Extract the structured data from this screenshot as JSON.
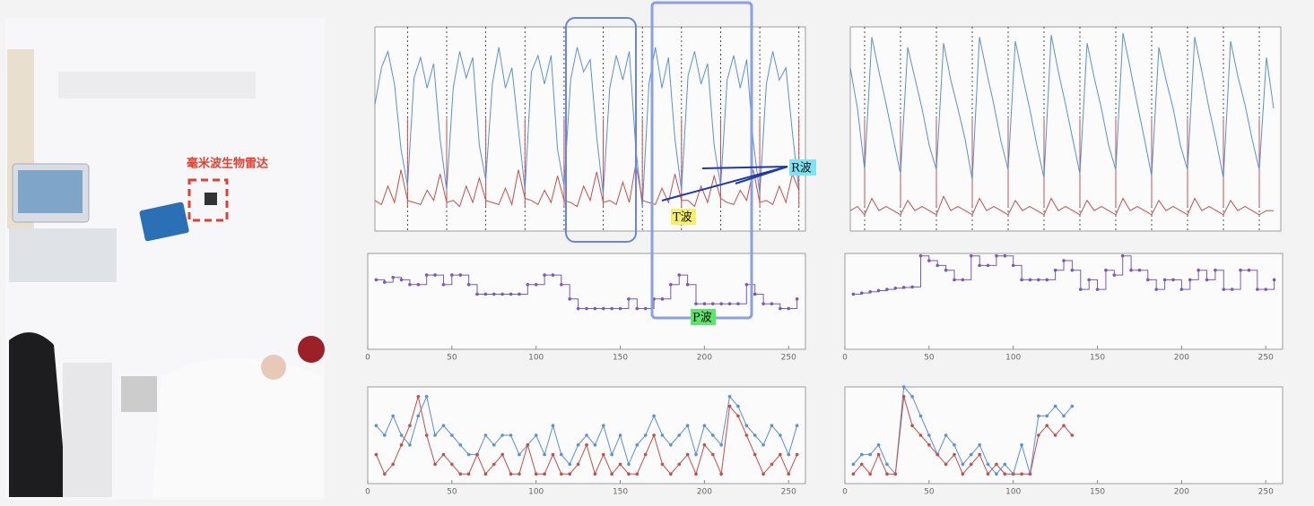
{
  "photo": {
    "label": "毫米波生物雷达"
  },
  "annotations": {
    "r_wave": "R波",
    "t_wave": "T波",
    "p_wave": "P波"
  },
  "chart_data": [
    {
      "type": "wave",
      "xlim": [
        0,
        66
      ],
      "ylim": [
        0,
        1
      ],
      "r_peaks": [
        5,
        11,
        17,
        23,
        29,
        35,
        41,
        47,
        53,
        59,
        65
      ],
      "series": [
        {
          "color": "#5b8fd6",
          "values": [
            0.62,
            0.8,
            0.88,
            0.72,
            0.4,
            0.22,
            0.75,
            0.85,
            0.7,
            0.82,
            0.45,
            0.2,
            0.7,
            0.88,
            0.75,
            0.85,
            0.42,
            0.25,
            0.72,
            0.9,
            0.7,
            0.8,
            0.5,
            0.2,
            0.78,
            0.86,
            0.72,
            0.86,
            0.4,
            0.22,
            0.74,
            0.9,
            0.78,
            0.84,
            0.46,
            0.18,
            0.7,
            0.86,
            0.74,
            0.88,
            0.4,
            0.12,
            0.72,
            0.9,
            0.7,
            0.85,
            0.45,
            0.2,
            0.76,
            0.88,
            0.72,
            0.82,
            0.42,
            0.22,
            0.74,
            0.86,
            0.7,
            0.84,
            0.44,
            0.18,
            0.72,
            0.88,
            0.74,
            0.8,
            0.48,
            0.2
          ]
        },
        {
          "color": "#c0504d",
          "values": [
            0.15,
            0.13,
            0.22,
            0.14,
            0.3,
            0.15,
            0.14,
            0.13,
            0.2,
            0.15,
            0.28,
            0.14,
            0.15,
            0.12,
            0.22,
            0.14,
            0.26,
            0.15,
            0.14,
            0.13,
            0.21,
            0.13,
            0.3,
            0.16,
            0.15,
            0.13,
            0.2,
            0.14,
            0.27,
            0.15,
            0.14,
            0.12,
            0.22,
            0.15,
            0.29,
            0.14,
            0.15,
            0.13,
            0.24,
            0.14,
            0.33,
            0.15,
            0.14,
            0.13,
            0.21,
            0.14,
            0.28,
            0.15,
            0.15,
            0.12,
            0.22,
            0.14,
            0.27,
            0.16,
            0.14,
            0.13,
            0.2,
            0.15,
            0.3,
            0.14,
            0.15,
            0.13,
            0.22,
            0.14,
            0.28,
            0.2
          ]
        }
      ]
    },
    {
      "type": "wave",
      "xlim": [
        0,
        60
      ],
      "ylim": [
        0,
        1
      ],
      "r_peaks": [
        2,
        7,
        12,
        17,
        22,
        27,
        32,
        37,
        42,
        47,
        52,
        57
      ],
      "series": [
        {
          "color": "#5b8fd6",
          "values": [
            0.8,
            0.6,
            0.3,
            0.95,
            0.78,
            0.62,
            0.45,
            0.28,
            0.9,
            0.75,
            0.6,
            0.42,
            0.3,
            0.92,
            0.74,
            0.6,
            0.45,
            0.25,
            0.95,
            0.78,
            0.62,
            0.44,
            0.3,
            0.93,
            0.76,
            0.6,
            0.42,
            0.26,
            0.96,
            0.78,
            0.62,
            0.45,
            0.28,
            0.92,
            0.75,
            0.6,
            0.42,
            0.3,
            0.97,
            0.8,
            0.62,
            0.45,
            0.27,
            0.9,
            0.74,
            0.6,
            0.42,
            0.3,
            0.95,
            0.78,
            0.6,
            0.44,
            0.26,
            0.93,
            0.76,
            0.62,
            0.45,
            0.3,
            0.85,
            0.6
          ]
        },
        {
          "color": "#c0504d",
          "values": [
            0.1,
            0.12,
            0.08,
            0.16,
            0.1,
            0.12,
            0.1,
            0.08,
            0.15,
            0.1,
            0.12,
            0.1,
            0.08,
            0.17,
            0.1,
            0.12,
            0.1,
            0.08,
            0.16,
            0.1,
            0.12,
            0.1,
            0.08,
            0.15,
            0.1,
            0.12,
            0.1,
            0.08,
            0.16,
            0.1,
            0.12,
            0.1,
            0.08,
            0.15,
            0.1,
            0.12,
            0.1,
            0.08,
            0.16,
            0.1,
            0.12,
            0.1,
            0.08,
            0.15,
            0.1,
            0.12,
            0.1,
            0.08,
            0.16,
            0.1,
            0.12,
            0.1,
            0.08,
            0.15,
            0.1,
            0.12,
            0.1,
            0.08,
            0.1,
            0.1
          ]
        }
      ]
    },
    {
      "type": "step",
      "xlim": [
        0,
        260
      ],
      "ylim": [
        55,
        95
      ],
      "xticks": [
        0,
        50,
        100,
        150,
        200,
        250
      ],
      "x": [
        5,
        10,
        15,
        20,
        25,
        30,
        35,
        40,
        45,
        50,
        55,
        60,
        65,
        70,
        75,
        80,
        85,
        90,
        95,
        100,
        105,
        110,
        115,
        120,
        125,
        130,
        135,
        140,
        145,
        150,
        155,
        160,
        165,
        170,
        175,
        180,
        185,
        190,
        195,
        200,
        205,
        210,
        215,
        220,
        225,
        230,
        235,
        240,
        245,
        250,
        255
      ],
      "series": [
        {
          "color": "#7a5ab8",
          "values": [
            84,
            83,
            85,
            84,
            82,
            82,
            86,
            86,
            82,
            86,
            86,
            82,
            78,
            78,
            78,
            78,
            78,
            78,
            82,
            82,
            86,
            86,
            82,
            76,
            72,
            72,
            72,
            72,
            72,
            72,
            76,
            72,
            72,
            76,
            76,
            82,
            86,
            82,
            74,
            74,
            74,
            74,
            74,
            74,
            82,
            78,
            74,
            74,
            72,
            72,
            76
          ]
        }
      ]
    },
    {
      "type": "step",
      "xlim": [
        0,
        260
      ],
      "ylim": [
        55,
        95
      ],
      "xticks": [
        0,
        50,
        100,
        150,
        200,
        250
      ],
      "x": [
        5,
        10,
        15,
        20,
        25,
        30,
        35,
        40,
        45,
        50,
        55,
        60,
        65,
        70,
        75,
        80,
        85,
        90,
        95,
        100,
        105,
        110,
        115,
        120,
        125,
        130,
        135,
        140,
        145,
        150,
        155,
        160,
        165,
        170,
        175,
        180,
        185,
        190,
        195,
        200,
        205,
        210,
        215,
        220,
        225,
        230,
        235,
        240,
        245,
        250,
        255
      ],
      "series": [
        {
          "color": "#7a5ab8",
          "values": [
            78,
            78.5,
            79,
            79.5,
            80,
            80.5,
            80.8,
            81,
            94,
            92,
            90,
            88,
            84,
            84,
            94,
            90,
            90,
            94,
            94,
            90,
            84,
            84,
            84,
            84,
            88,
            92,
            88,
            80,
            84,
            80,
            88,
            86,
            94,
            88,
            88,
            84,
            80,
            84,
            84,
            80,
            84,
            88,
            84,
            88,
            80,
            80,
            88,
            88,
            80,
            80,
            84
          ]
        }
      ]
    },
    {
      "type": "line",
      "xlim": [
        0,
        260
      ],
      "ylim": [
        0,
        10
      ],
      "xticks": [
        0,
        50,
        100,
        150,
        200,
        250
      ],
      "x": [
        5,
        10,
        15,
        20,
        25,
        30,
        35,
        40,
        45,
        50,
        55,
        60,
        65,
        70,
        75,
        80,
        85,
        90,
        95,
        100,
        105,
        110,
        115,
        120,
        125,
        130,
        135,
        140,
        145,
        150,
        155,
        160,
        165,
        170,
        175,
        180,
        185,
        190,
        195,
        200,
        205,
        210,
        215,
        220,
        225,
        230,
        235,
        240,
        245,
        250,
        255
      ],
      "series": [
        {
          "color": "#5b8fd6",
          "values": [
            6,
            5,
            7,
            5,
            4,
            7,
            9,
            5,
            6,
            5,
            4,
            3,
            3,
            5,
            4,
            5,
            5,
            3,
            4,
            5,
            3,
            6,
            3,
            2,
            4,
            5,
            4,
            6,
            3,
            5,
            2,
            4,
            5,
            7,
            5,
            4,
            5,
            6,
            3,
            6,
            5,
            4,
            9,
            8,
            6,
            5,
            4,
            6,
            5,
            3,
            6
          ]
        },
        {
          "color": "#c0504d",
          "values": [
            3,
            1,
            2,
            4,
            6,
            9,
            5,
            2,
            3,
            2,
            1,
            1,
            3,
            1,
            2,
            3,
            1,
            1,
            4,
            1,
            1,
            3,
            1,
            1,
            2,
            4,
            1,
            3,
            1,
            2,
            1,
            1,
            3,
            5,
            2,
            1,
            2,
            3,
            1,
            4,
            3,
            1,
            8,
            7,
            5,
            3,
            1,
            2,
            3,
            1,
            3
          ]
        }
      ]
    },
    {
      "type": "line",
      "xlim": [
        0,
        260
      ],
      "ylim": [
        0,
        10
      ],
      "xticks": [
        0,
        50,
        100,
        150,
        200,
        250
      ],
      "x": [
        5,
        10,
        15,
        20,
        25,
        30,
        35,
        40,
        45,
        50,
        55,
        60,
        65,
        70,
        75,
        80,
        85,
        90,
        95,
        100,
        105,
        110,
        115,
        120,
        125,
        130,
        135
      ],
      "series": [
        {
          "color": "#5b8fd6",
          "values": [
            2,
            3,
            3,
            4,
            2,
            1,
            10,
            9,
            7,
            5,
            3,
            5,
            4,
            2,
            3,
            4,
            2,
            1,
            2,
            1,
            4,
            1,
            7,
            7,
            8,
            7,
            8
          ]
        },
        {
          "color": "#c0504d",
          "values": [
            1,
            2,
            1,
            3,
            1,
            1,
            9,
            6,
            5,
            4,
            3,
            2,
            3,
            1,
            2,
            3,
            1,
            2,
            1,
            1,
            1,
            1,
            5,
            6,
            5,
            6,
            5
          ]
        }
      ]
    }
  ]
}
